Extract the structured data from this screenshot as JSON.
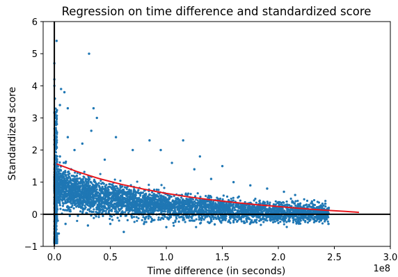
{
  "chart_data": {
    "type": "scatter",
    "title": "Regression on time difference and standardized score",
    "xlabel": "Time difference (in seconds)",
    "ylabel": "Standardized score",
    "x_scale_label": "1e8",
    "xlim": [
      -0.1,
      3.0
    ],
    "ylim": [
      -1,
      6
    ],
    "x_unit_multiplier": 100000000,
    "x_ticks": [
      0.0,
      0.5,
      1.0,
      1.5,
      2.0,
      2.5,
      3.0
    ],
    "x_tick_labels": [
      "0.0",
      "0.5",
      "1.0",
      "1.5",
      "2.0",
      "2.5",
      "3.0"
    ],
    "y_ticks": [
      -1,
      0,
      1,
      2,
      3,
      4,
      5,
      6
    ],
    "y_tick_labels": [
      "−1",
      "0",
      "1",
      "2",
      "3",
      "4",
      "5",
      "6"
    ],
    "grid": false,
    "reference_lines": [
      {
        "orientation": "horizontal",
        "value": 0,
        "color": "#000000"
      },
      {
        "orientation": "vertical",
        "value": 0,
        "color": "#000000"
      }
    ],
    "series": [
      {
        "kind": "scatter",
        "color": "#1f77b4",
        "points": [
          [
            0.31,
            5.0
          ],
          [
            0.02,
            5.4
          ],
          [
            0.0,
            4.7
          ],
          [
            0.0,
            4.2
          ],
          [
            0.0,
            4.0
          ],
          [
            0.005,
            3.6
          ],
          [
            0.06,
            3.9
          ],
          [
            0.09,
            3.8
          ],
          [
            0.12,
            3.3
          ],
          [
            0.05,
            3.4
          ],
          [
            0.35,
            3.3
          ],
          [
            0.38,
            3.0
          ],
          [
            0.33,
            2.6
          ],
          [
            0.01,
            3.0
          ],
          [
            0.02,
            2.8
          ],
          [
            0.12,
            2.4
          ],
          [
            0.55,
            2.4
          ],
          [
            0.85,
            2.3
          ],
          [
            1.15,
            2.3
          ],
          [
            1.3,
            1.8
          ],
          [
            1.5,
            1.5
          ],
          [
            0.7,
            2.0
          ],
          [
            0.95,
            2.0
          ],
          [
            0.25,
            2.2
          ],
          [
            0.18,
            2.0
          ],
          [
            0.45,
            1.7
          ],
          [
            1.05,
            1.6
          ],
          [
            1.25,
            1.4
          ],
          [
            1.4,
            1.1
          ],
          [
            1.6,
            1.0
          ],
          [
            1.75,
            0.9
          ],
          [
            1.9,
            0.8
          ],
          [
            2.05,
            0.7
          ],
          [
            2.15,
            0.6
          ],
          [
            2.3,
            0.4
          ],
          [
            2.45,
            0.2
          ],
          [
            0.05,
            1.8
          ],
          [
            0.1,
            1.6
          ],
          [
            0.15,
            1.4
          ],
          [
            0.2,
            1.2
          ],
          [
            0.28,
            1.1
          ],
          [
            0.42,
            0.95
          ],
          [
            0.6,
            0.85
          ],
          [
            0.75,
            0.75
          ],
          [
            0.9,
            0.6
          ],
          [
            1.1,
            0.5
          ],
          [
            1.3,
            0.4
          ],
          [
            1.5,
            0.35
          ],
          [
            1.7,
            0.25
          ],
          [
            1.85,
            0.2
          ],
          [
            2.0,
            0.15
          ],
          [
            2.2,
            0.1
          ],
          [
            2.4,
            0.05
          ],
          [
            0.03,
            -0.2
          ],
          [
            0.1,
            -0.3
          ],
          [
            0.3,
            -0.35
          ],
          [
            0.5,
            -0.3
          ],
          [
            0.62,
            -0.55
          ],
          [
            0.8,
            -0.3
          ],
          [
            1.0,
            -0.4
          ],
          [
            1.25,
            -0.2
          ],
          [
            1.6,
            -0.25
          ],
          [
            2.1,
            -0.2
          ],
          [
            0.04,
            -0.6
          ],
          [
            0.01,
            -0.9
          ]
        ]
      },
      {
        "kind": "line",
        "name": "",
        "color": "#e8151b",
        "x": [
          0.02,
          0.2,
          0.4,
          0.6,
          0.8,
          1.0,
          1.2,
          1.4,
          1.6,
          1.8,
          2.0,
          2.2,
          2.4,
          2.6,
          2.72
        ],
        "y": [
          1.57,
          1.33,
          1.11,
          0.93,
          0.78,
          0.65,
          0.54,
          0.45,
          0.37,
          0.3,
          0.24,
          0.18,
          0.13,
          0.09,
          0.06
        ]
      }
    ]
  }
}
